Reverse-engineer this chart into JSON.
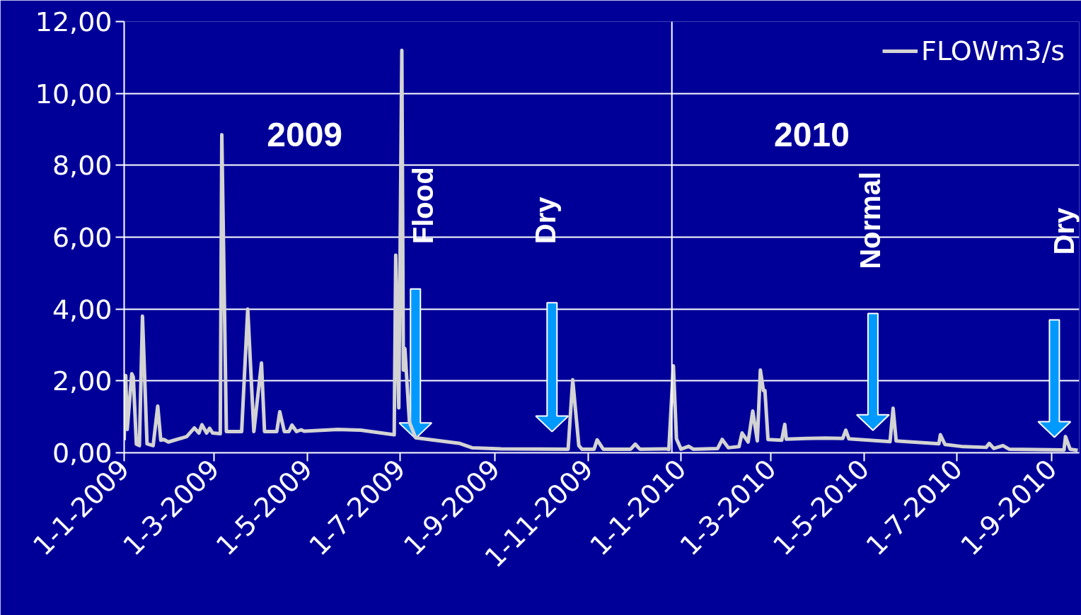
{
  "chart_data": {
    "type": "line",
    "x": [
      "2009-01-01",
      "2009-01-02",
      "2009-01-03",
      "2009-01-06",
      "2009-01-07",
      "2009-01-09",
      "2009-01-11",
      "2009-01-13",
      "2009-01-16",
      "2009-01-20",
      "2009-01-23",
      "2009-01-25",
      "2009-01-27",
      "2009-01-30",
      "2009-02-11",
      "2009-02-16",
      "2009-02-19",
      "2009-02-21",
      "2009-02-24",
      "2009-02-26",
      "2009-02-28",
      "2009-03-05",
      "2009-03-06",
      "2009-03-09",
      "2009-03-19",
      "2009-03-23",
      "2009-03-27",
      "2009-04-01",
      "2009-04-03",
      "2009-04-11",
      "2009-04-13",
      "2009-04-16",
      "2009-04-19",
      "2009-04-21",
      "2009-04-24",
      "2009-04-27",
      "2009-04-29",
      "2009-05-21",
      "2009-06-05",
      "2009-06-27",
      "2009-06-28",
      "2009-06-30",
      "2009-07-02",
      "2009-07-03",
      "2009-07-04",
      "2009-07-07",
      "2009-07-11",
      "2009-08-09",
      "2009-08-17",
      "2009-09-05",
      "2009-10-19",
      "2009-10-22",
      "2009-10-26",
      "2009-10-28",
      "2009-11-05",
      "2009-11-07",
      "2009-11-11",
      "2009-11-29",
      "2009-12-02",
      "2009-12-05",
      "2009-12-22",
      "2009-12-24",
      "2009-12-27",
      "2009-12-29",
      "2010-01-01",
      "2010-01-06",
      "2010-01-09",
      "2010-01-25",
      "2010-01-28",
      "2010-02-01",
      "2010-02-08",
      "2010-02-10",
      "2010-02-14",
      "2010-02-17",
      "2010-02-20",
      "2010-02-22",
      "2010-02-24",
      "2010-02-25",
      "2010-02-27",
      "2010-03-08",
      "2010-03-10",
      "2010-03-11",
      "2010-03-24",
      "2010-04-06",
      "2010-04-17",
      "2010-04-19",
      "2010-04-21",
      "2010-05-18",
      "2010-05-20",
      "2010-05-22",
      "2010-06-19",
      "2010-06-20",
      "2010-06-23",
      "2010-07-05",
      "2010-07-20",
      "2010-07-22",
      "2010-07-25",
      "2010-07-31",
      "2010-08-04",
      "2010-09-09",
      "2010-09-10",
      "2010-09-13",
      "2010-09-18"
    ],
    "series": [
      {
        "name": "FLOWm3/s",
        "color": "#d3d3d3",
        "values": [
          0.35,
          2.15,
          0.65,
          2.2,
          2.1,
          0.24,
          0.2,
          3.8,
          0.25,
          0.2,
          1.3,
          0.35,
          0.37,
          0.3,
          0.45,
          0.69,
          0.55,
          0.78,
          0.55,
          0.68,
          0.55,
          0.53,
          8.85,
          0.59,
          0.59,
          4.0,
          0.59,
          2.5,
          0.59,
          0.59,
          1.14,
          0.59,
          0.59,
          0.77,
          0.59,
          0.64,
          0.6,
          0.65,
          0.63,
          0.5,
          5.5,
          1.25,
          11.2,
          2.3,
          2.9,
          0.85,
          0.42,
          0.26,
          0.14,
          0.11,
          0.1,
          2.03,
          0.2,
          0.1,
          0.1,
          0.36,
          0.1,
          0.1,
          0.24,
          0.1,
          0.11,
          0.09,
          2.42,
          0.39,
          0.1,
          0.18,
          0.1,
          0.12,
          0.37,
          0.14,
          0.17,
          0.55,
          0.3,
          1.16,
          0.33,
          2.3,
          1.73,
          1.73,
          0.37,
          0.35,
          0.79,
          0.38,
          0.4,
          0.41,
          0.4,
          0.63,
          0.39,
          0.31,
          1.24,
          0.33,
          0.25,
          0.5,
          0.23,
          0.17,
          0.15,
          0.26,
          0.12,
          0.2,
          0.1,
          0.08,
          0.45,
          0.1,
          0.07
        ]
      }
    ],
    "xlim": [
      "2009-01-01",
      "2010-09-19"
    ],
    "xticks": [
      {
        "value": "2009-01-01",
        "label": "1-1-2009"
      },
      {
        "value": "2009-03-01",
        "label": "1-3-2009"
      },
      {
        "value": "2009-05-01",
        "label": "1-5-2009"
      },
      {
        "value": "2009-07-01",
        "label": "1-7-2009"
      },
      {
        "value": "2009-09-01",
        "label": "1-9-2009"
      },
      {
        "value": "2009-11-01",
        "label": "1-11-2009"
      },
      {
        "value": "2010-01-01",
        "label": "1-1-2010"
      },
      {
        "value": "2010-03-01",
        "label": "1-3-2010"
      },
      {
        "value": "2010-05-01",
        "label": "1-5-2010"
      },
      {
        "value": "2010-07-01",
        "label": "1-7-2010"
      },
      {
        "value": "2010-09-01",
        "label": "1-9-2010"
      }
    ],
    "ylim": [
      0,
      12
    ],
    "yticks": [
      {
        "value": 0,
        "label": "0,00"
      },
      {
        "value": 2,
        "label": "2,00"
      },
      {
        "value": 4,
        "label": "4,00"
      },
      {
        "value": 6,
        "label": "6,00"
      },
      {
        "value": 8,
        "label": "8,00"
      },
      {
        "value": 10,
        "label": "10,00"
      },
      {
        "value": 12,
        "label": "12,00"
      }
    ],
    "grid": "y",
    "legend": "top right",
    "marker": "none",
    "line_style": "solid",
    "ref_lines": [
      {
        "axis": "x",
        "value": "2009-12-26",
        "color": "#ffffff"
      }
    ],
    "annotations": [
      "2009",
      "2010",
      "Flood",
      "Dry",
      "Normal",
      "Dry"
    ]
  }
}
